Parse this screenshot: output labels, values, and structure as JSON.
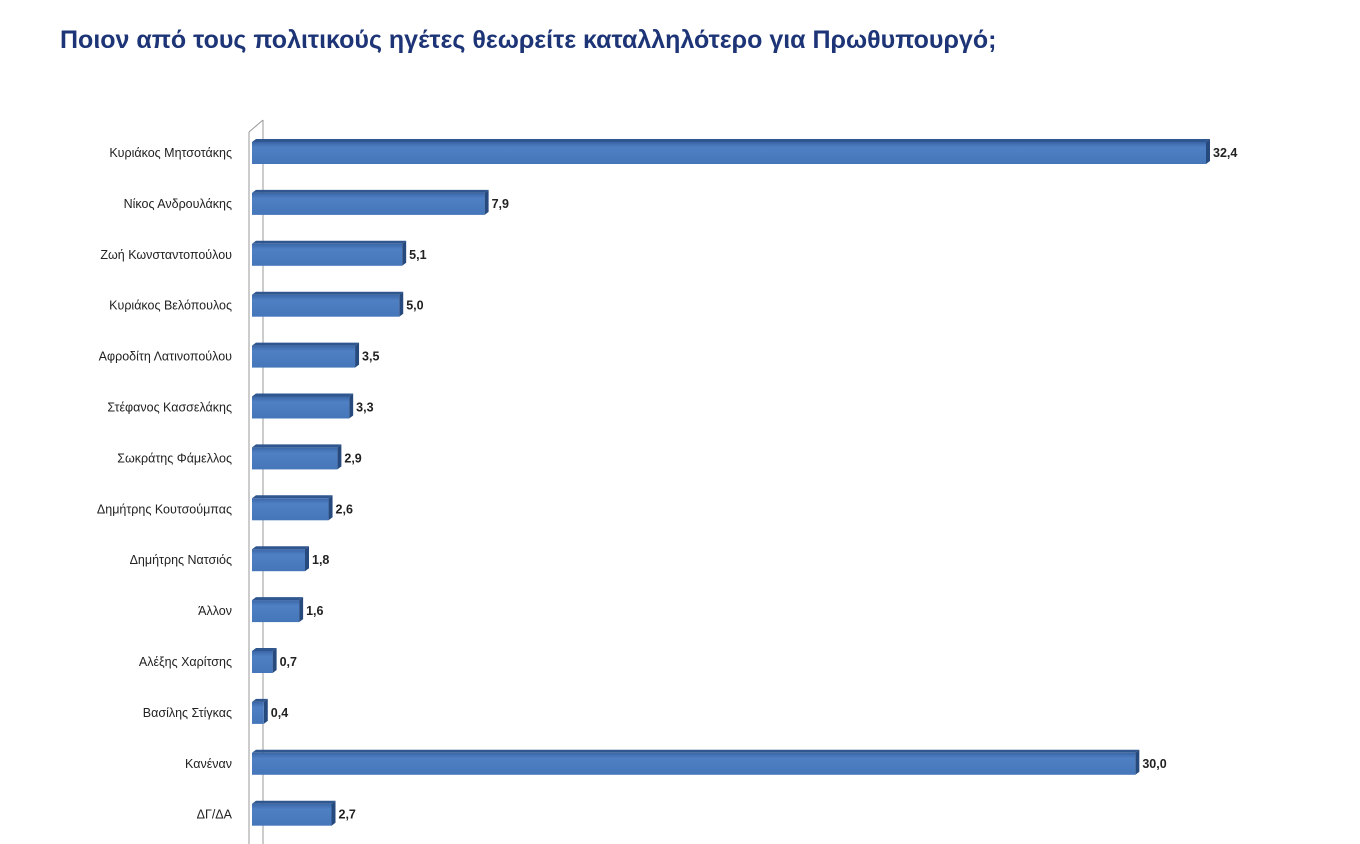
{
  "chart_data": {
    "type": "bar",
    "orientation": "horizontal",
    "title": "Ποιον από τους πολιτικούς ηγέτες θεωρείτε καταλληλότερο για Πρωθυπουργό;",
    "categories": [
      "Κυριάκος Μητσοτάκης",
      "Νίκος Ανδρουλάκης",
      "Ζωή Κωνσταντοπούλου",
      "Κυριάκος Βελόπουλος",
      "Αφροδίτη Λατινοπούλου",
      "Στέφανος Κασσελάκης",
      "Σωκράτης Φάμελλος",
      "Δημήτρης Κουτσούμπας",
      "Δημήτρης Νατσιός",
      "Άλλον",
      "Αλέξης Χαρίτσης",
      "Βασίλης Στίγκας",
      "Κανέναν",
      "ΔΓ/ΔΑ"
    ],
    "values": [
      32.4,
      7.9,
      5.1,
      5.0,
      3.5,
      3.3,
      2.9,
      2.6,
      1.8,
      1.6,
      0.7,
      0.4,
      30.0,
      2.7
    ],
    "value_labels": [
      "32,4",
      "7,9",
      "5,1",
      "5,0",
      "3,5",
      "3,3",
      "2,9",
      "2,6",
      "1,8",
      "1,6",
      "0,7",
      "0,4",
      "30,0",
      "2,7"
    ],
    "xlabel": "",
    "ylabel": "",
    "xlim": [
      0,
      32.4
    ],
    "grid": false,
    "legend": "none",
    "bar_color": "#4a7cc0",
    "style": "3d"
  }
}
